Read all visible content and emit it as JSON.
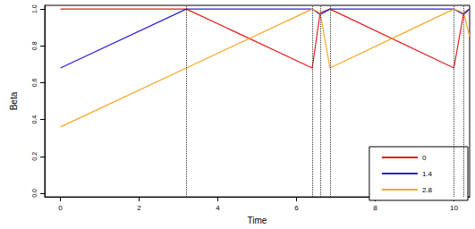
{
  "chart_data": {
    "type": "line",
    "x_label": "Time",
    "y_label": "Beta",
    "x": [
      0,
      3.2,
      6.4,
      6.6,
      6.85,
      10.0,
      10.25,
      10.4
    ],
    "series": [
      {
        "name": "0",
        "color": "#e41a1c",
        "values": [
          1.0,
          1.0,
          0.68,
          0.98,
          1.0,
          0.68,
          0.98,
          1.0
        ]
      },
      {
        "name": "1.4",
        "color": "#2a1fd6",
        "values": [
          0.68,
          1.0,
          1.0,
          0.97,
          1.0,
          1.0,
          0.97,
          1.0
        ]
      },
      {
        "name": "2.8",
        "color": "#f5a623",
        "values": [
          0.36,
          0.68,
          1.0,
          0.98,
          0.68,
          1.0,
          0.98,
          0.85
        ]
      }
    ],
    "vlines": [
      3.2,
      6.4,
      6.6,
      6.85,
      10.0,
      10.25
    ],
    "xlim": [
      -0.4,
      10.4
    ],
    "xticks": [
      0,
      2,
      4,
      6,
      8,
      10
    ],
    "ylim": [
      -0.02,
      1.02
    ],
    "yticks": [
      {
        "value": 0,
        "label": "0.0"
      },
      {
        "value": 0.2,
        "label": "0.2"
      },
      {
        "value": 0.4,
        "label": "0.4"
      },
      {
        "value": 0.6,
        "label": "0.6"
      },
      {
        "value": 0.8,
        "label": "0.8"
      },
      {
        "value": 1,
        "label": "1.0"
      }
    ],
    "legend": "bottom-right",
    "grid": false
  }
}
